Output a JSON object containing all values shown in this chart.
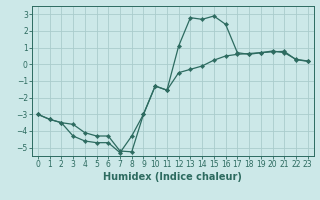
{
  "xlabel": "Humidex (Indice chaleur)",
  "bg_color": "#cce8e8",
  "grid_color": "#aacccc",
  "line_color": "#2d6b60",
  "xlim": [
    -0.5,
    23.5
  ],
  "ylim": [
    -5.5,
    3.5
  ],
  "xticks": [
    0,
    1,
    2,
    3,
    4,
    5,
    6,
    7,
    8,
    9,
    10,
    11,
    12,
    13,
    14,
    15,
    16,
    17,
    18,
    19,
    20,
    21,
    22,
    23
  ],
  "yticks": [
    -5,
    -4,
    -3,
    -2,
    -1,
    0,
    1,
    2,
    3
  ],
  "line1_x": [
    0,
    1,
    2,
    3,
    4,
    5,
    6,
    7,
    8,
    9,
    10,
    11,
    12,
    13,
    14,
    15,
    16,
    17,
    18,
    19,
    20,
    21,
    22,
    23
  ],
  "line1_y": [
    -3.0,
    -3.3,
    -3.5,
    -4.3,
    -4.6,
    -4.7,
    -4.7,
    -5.3,
    -4.3,
    -3.0,
    -1.3,
    -1.55,
    1.1,
    2.8,
    2.7,
    2.9,
    2.4,
    0.7,
    0.6,
    0.7,
    0.8,
    0.7,
    0.3,
    0.2
  ],
  "line2_x": [
    0,
    1,
    2,
    3,
    4,
    5,
    6,
    7,
    8,
    9,
    10,
    11,
    12,
    13,
    14,
    15,
    16,
    17,
    18,
    19,
    20,
    21,
    22,
    23
  ],
  "line2_y": [
    -3.0,
    -3.3,
    -3.5,
    -3.6,
    -4.1,
    -4.3,
    -4.3,
    -5.2,
    -5.25,
    -3.0,
    -1.3,
    -1.55,
    -0.5,
    -0.3,
    -0.1,
    0.25,
    0.5,
    0.6,
    0.65,
    0.7,
    0.75,
    0.78,
    0.28,
    0.18
  ],
  "xlabel_fontsize": 7,
  "tick_fontsize": 5.5,
  "linewidth": 0.9,
  "markersize": 2.2
}
